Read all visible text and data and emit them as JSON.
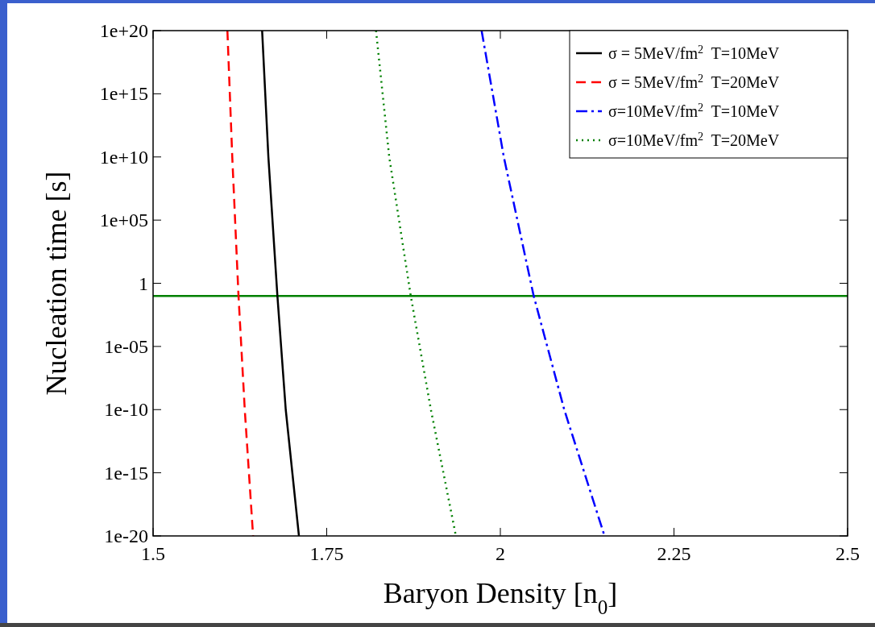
{
  "chart_data": {
    "type": "line",
    "xlabel": "Baryon Density [n$_{0}$]",
    "ylabel": "Nucleation time [s]",
    "log": "y",
    "xlim": [
      1.5,
      2.5
    ],
    "xticks": [
      1.5,
      1.75,
      2,
      2.25,
      2.5
    ],
    "ylim": [
      1e-20,
      1e+20
    ],
    "yticks": [
      {
        "value": 1e-20,
        "label": "1e-20"
      },
      {
        "value": 1e-15,
        "label": "1e-15"
      },
      {
        "value": 1e-10,
        "label": "1e-10"
      },
      {
        "value": 1e-05,
        "label": "1e-05"
      },
      1,
      {
        "value": 100000.0,
        "label": "1e+05"
      },
      {
        "value": 10000000000.0,
        "label": "1e+10"
      },
      {
        "value": 1000000000000000.0,
        "label": "1e+15"
      },
      {
        "value": 1e+20,
        "label": "1e+20"
      }
    ],
    "grid": false,
    "legend": "top right",
    "marker": "none",
    "series": [
      {
        "name": "σ = 5MeV/fm$^{2}$  T=10MeV",
        "color": "#000000",
        "line_style": "solid",
        "x": [
          1.657,
          1.666,
          1.679,
          1.691,
          1.71
        ],
        "values": [
          1e+20,
          10000000000.0,
          0.1,
          1e-10,
          1e-20
        ]
      },
      {
        "name": "σ = 5MeV/fm$^{2}$  T=20MeV",
        "color": "#ff0000",
        "line_style": "dashed",
        "x": [
          1.607,
          1.614,
          1.623,
          1.632,
          1.644
        ],
        "values": [
          1e+20,
          10000000000.0,
          0.1,
          1e-10,
          1e-20
        ]
      },
      {
        "name": "σ=10MeV/fm$^{2}$  T=10MeV",
        "color": "#0000ff",
        "line_style": "dashdot",
        "x": [
          1.973,
          2.005,
          2.048,
          2.092,
          2.15
        ],
        "values": [
          1e+20,
          10000000000.0,
          0.1,
          1e-10,
          1e-20
        ]
      },
      {
        "name": "σ=10MeV/fm$^{2}$  T=20MeV",
        "color": "#008000",
        "line_style": "dotted",
        "x": [
          1.821,
          1.84,
          1.871,
          1.9,
          1.936
        ],
        "values": [
          1e+20,
          10000000000.0,
          0.1,
          1e-10,
          1e-20
        ]
      }
    ],
    "ref_lines": [
      {
        "axis": "y",
        "value": 0.1,
        "color": "#008000",
        "line_style": "solid"
      }
    ]
  }
}
